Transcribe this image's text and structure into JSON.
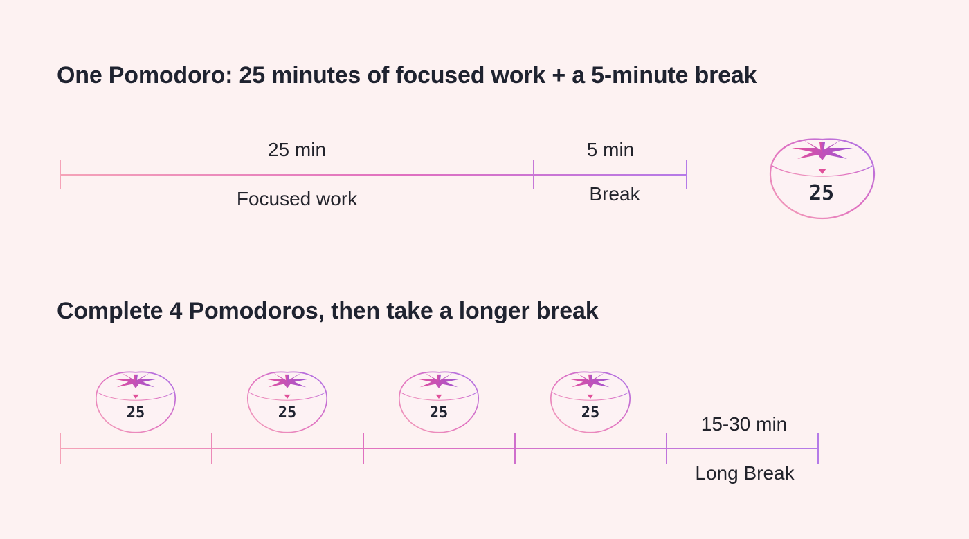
{
  "section1": {
    "title": "One Pomodoro: 25 minutes of focused work + a 5-minute break",
    "work_duration": "25 min",
    "work_label": "Focused work",
    "break_duration": "5 min",
    "break_label": "Break",
    "timer_value": "25"
  },
  "section2": {
    "title": "Complete 4 Pomodoros, then take a longer break",
    "timers": [
      {
        "value": "25"
      },
      {
        "value": "25"
      },
      {
        "value": "25"
      },
      {
        "value": "25"
      }
    ],
    "long_break_duration": "15-30 min",
    "long_break_label": "Long Break"
  },
  "colors": {
    "background": "#fdf2f2",
    "gradient_start": "#f5a3b8",
    "gradient_mid": "#e070c0",
    "gradient_end": "#b57be8",
    "leaf_pink": "#e0509a",
    "leaf_purple": "#9b55d6",
    "text": "#1f2330"
  },
  "icons": {
    "timer": "tomato-timer-icon",
    "equals": "equals-sign-icon"
  }
}
